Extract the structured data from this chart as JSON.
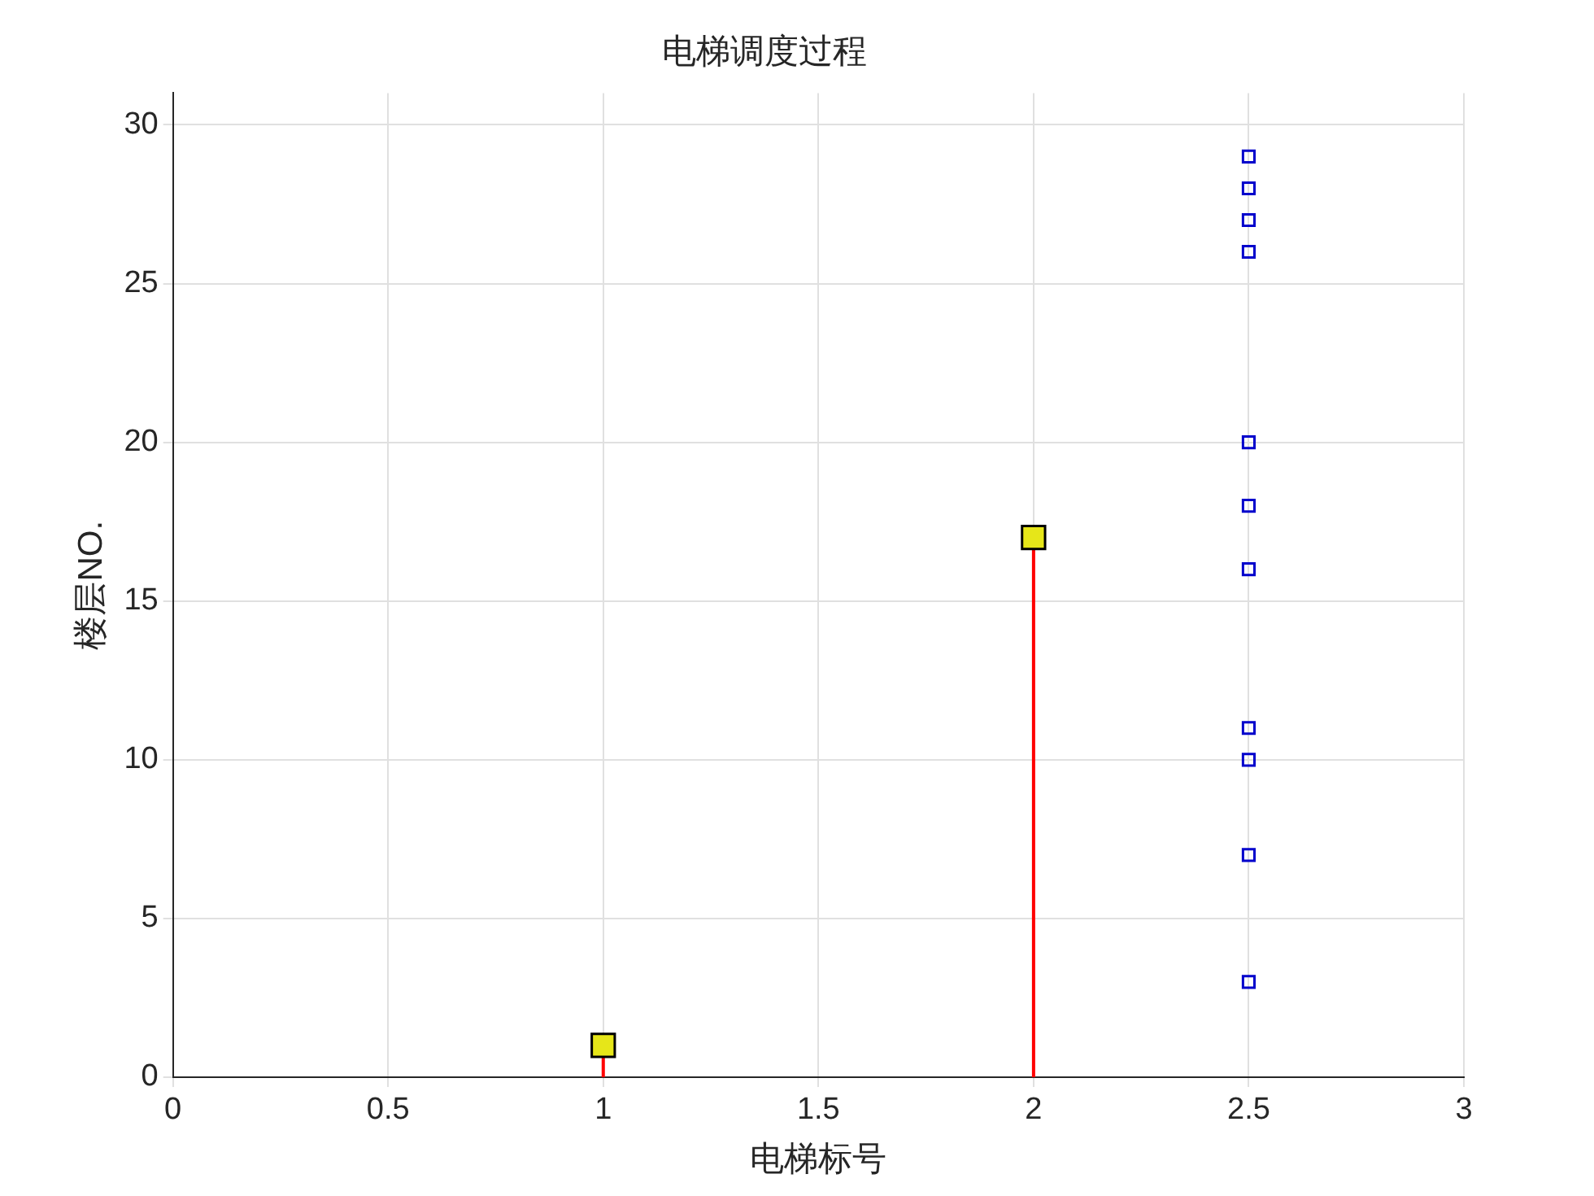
{
  "chart_data": {
    "type": "scatter",
    "title": "电梯调度过程",
    "xlabel": "电梯标号",
    "ylabel": "楼层NO.",
    "xlim": [
      0,
      3
    ],
    "xticks": [
      0,
      0.5,
      1,
      1.5,
      2,
      2.5,
      3
    ],
    "ylim": [
      0,
      31
    ],
    "yticks": [
      0,
      5,
      10,
      15,
      20,
      25,
      30
    ],
    "grid": true,
    "marker": "square",
    "series": [
      {
        "type": "lollipop",
        "x": [
          1,
          2
        ],
        "values": [
          1,
          17
        ],
        "color": "#ff0000",
        "colors": [
          "#e6e619",
          "#e6e619"
        ]
      },
      {
        "x": [
          2.5,
          2.5,
          2.5,
          2.5,
          2.5,
          2.5,
          2.5,
          2.5,
          2.5,
          2.5,
          2.5
        ],
        "values": [
          3,
          7,
          10,
          11,
          16,
          18,
          20,
          26,
          27,
          28,
          29
        ],
        "color": "#0000cc"
      }
    ]
  }
}
